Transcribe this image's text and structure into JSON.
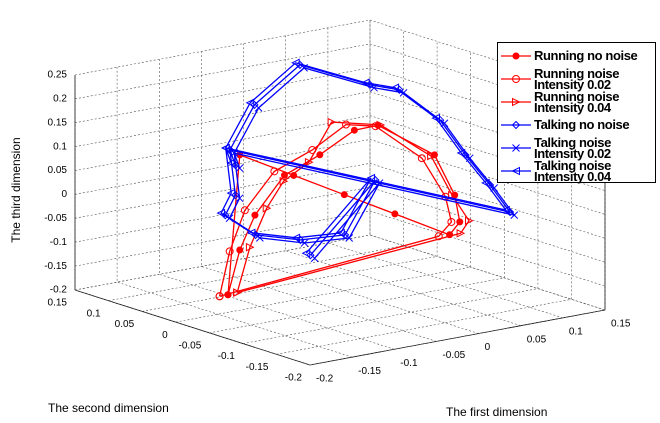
{
  "chart_data": {
    "type": "line3d",
    "xlabel": "The first dimension",
    "ylabel": "The second dimension",
    "zlabel": "The third dimension",
    "xlim": [
      -0.2,
      0.15
    ],
    "xticks": [
      -0.2,
      -0.15,
      -0.1,
      -0.05,
      0,
      0.05,
      0.1,
      0.15
    ],
    "ylim": [
      -0.2,
      0.15
    ],
    "yticks": [
      -0.2,
      -0.15,
      -0.1,
      -0.05,
      0,
      0.05,
      0.1,
      0.15
    ],
    "zlim": [
      -0.2,
      0.25
    ],
    "zticks": [
      -0.2,
      -0.15,
      -0.1,
      -0.05,
      0,
      0.05,
      0.1,
      0.15,
      0.2,
      0.25
    ],
    "grid": true,
    "series": [
      {
        "name": "Running no noise",
        "color": "#ff0000",
        "marker": "dot",
        "x": [
          -0.138,
          -0.124,
          -0.06,
          0,
          0.06,
          0.125,
          0.137,
          0.131,
          0.107,
          0.04,
          0.012,
          -0.029,
          -0.071,
          -0.106,
          -0.124,
          -0.138
        ],
        "y": [
          0,
          0,
          0,
          0,
          0,
          0,
          0,
          0,
          0,
          0,
          0,
          0,
          0,
          0,
          0,
          0
        ],
        "z": [
          -0.163,
          0.125,
          0.061,
          0.001,
          -0.059,
          -0.124,
          -0.101,
          -0.043,
          0.049,
          0.133,
          0.132,
          0.094,
          0.065,
          -0.007,
          -0.074,
          -0.163
        ]
      },
      {
        "name": "Running noise Intensity 0.02",
        "color": "#ff0000",
        "marker": "circle",
        "x": [
          -0.14,
          0.12,
          0.135,
          0.128,
          0.1,
          0.045,
          0.01,
          -0.03,
          -0.075,
          -0.11,
          -0.128,
          -0.14
        ],
        "y": [
          0.01,
          0.01,
          0.01,
          0.01,
          0.01,
          0.01,
          0.01,
          0.01,
          0.01,
          0.01,
          0.01,
          0.01
        ],
        "z": [
          -0.17,
          -0.13,
          -0.105,
          -0.05,
          0.04,
          0.125,
          0.14,
          0.1,
          0.07,
          0,
          -0.08,
          -0.17
        ]
      },
      {
        "name": "Running noise Intensity 0.04",
        "color": "#ff0000",
        "marker": "triangle-right",
        "x": [
          -0.135,
          0.13,
          0.14,
          0.12,
          0.095,
          0.035,
          -0.023,
          -0.05,
          -0.08,
          -0.1,
          -0.12,
          -0.135
        ],
        "y": [
          -0.01,
          -0.01,
          -0.01,
          -0.01,
          -0.01,
          -0.01,
          -0.01,
          -0.01,
          -0.01,
          -0.01,
          -0.01,
          -0.01
        ],
        "z": [
          -0.155,
          -0.118,
          -0.095,
          -0.035,
          0.055,
          0.14,
          0.165,
          0.09,
          0.06,
          0.01,
          -0.065,
          -0.155
        ]
      },
      {
        "name": "Talking no noise",
        "color": "#0000ff",
        "marker": "diamond",
        "x": [
          -0.169,
          -0.056,
          -0.027,
          0.027,
          0.11,
          0.145,
          0.074,
          0.104,
          0.133,
          0.117,
          -0.056,
          -0.169,
          -0.181,
          -0.145,
          -0.092,
          -0.039,
          -0.003,
          -0.08
        ],
        "y": [
          -0.05,
          0.1,
          0.1,
          0.1,
          0.1,
          0.1,
          -0.05,
          -0.05,
          -0.05,
          -0.1,
          0.1,
          -0.05,
          -0.05,
          -0.05,
          -0.05,
          -0.05,
          -0.05,
          -0.05
        ],
        "z": [
          0.141,
          0.068,
          0.153,
          0.219,
          0.15,
          0.128,
          0.155,
          0.072,
          0,
          -0.029,
          0.068,
          0.078,
          0.04,
          -0.013,
          -0.041,
          -0.048,
          0.055,
          -0.077
        ]
      },
      {
        "name": "Talking noise Intensity 0.02",
        "color": "#0000ff",
        "marker": "x",
        "x": [
          -0.164,
          -0.051,
          -0.022,
          0.032,
          0.115,
          0.15,
          0.079,
          0.109,
          0.138,
          0.122,
          -0.051,
          -0.164,
          -0.176,
          -0.14,
          -0.087,
          -0.034,
          0.002,
          -0.075
        ],
        "y": [
          -0.05,
          0.1,
          0.1,
          0.1,
          0.1,
          0.1,
          -0.05,
          -0.05,
          -0.05,
          -0.1,
          0.1,
          -0.05,
          -0.05,
          -0.05,
          -0.05,
          -0.05,
          -0.05,
          -0.05
        ],
        "z": [
          0.133,
          0.06,
          0.145,
          0.211,
          0.142,
          0.12,
          0.147,
          0.064,
          -0.008,
          -0.037,
          0.06,
          0.07,
          0.032,
          -0.021,
          -0.049,
          -0.056,
          0.047,
          -0.085
        ]
      },
      {
        "name": "Talking noise Intensity 0.04",
        "color": "#0000ff",
        "marker": "triangle-left",
        "x": [
          -0.174,
          -0.061,
          -0.032,
          0.022,
          0.105,
          0.14,
          0.069,
          0.099,
          0.128,
          0.112,
          -0.061,
          -0.174,
          -0.186,
          -0.15,
          -0.097,
          -0.044,
          -0.008,
          -0.085
        ],
        "y": [
          -0.05,
          0.1,
          0.1,
          0.1,
          0.1,
          0.1,
          -0.05,
          -0.05,
          -0.05,
          -0.1,
          0.1,
          -0.05,
          -0.05,
          -0.05,
          -0.05,
          -0.05,
          -0.05,
          -0.05
        ],
        "z": [
          0.147,
          0.074,
          0.159,
          0.225,
          0.156,
          0.134,
          0.161,
          0.078,
          0.006,
          -0.023,
          0.074,
          0.084,
          0.046,
          -0.007,
          -0.035,
          -0.042,
          0.061,
          -0.071
        ]
      }
    ]
  }
}
